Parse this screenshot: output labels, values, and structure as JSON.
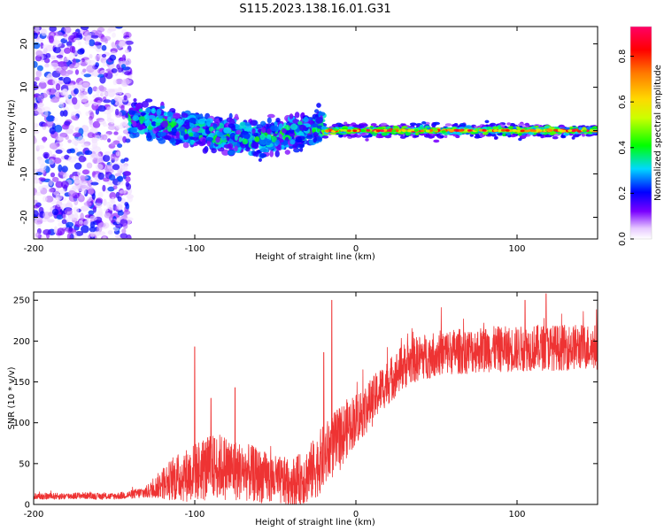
{
  "title": "S115.2023.138.16.01.G31",
  "colors": {
    "snr_line": "#ee3333",
    "spectral_low": "#7a00ff",
    "spectral_mid": "#00ff00",
    "spectral_high": "#ff0066"
  },
  "chart_data": [
    {
      "type": "heatmap",
      "title": "S115.2023.138.16.01.G31",
      "xlabel": "Height of straight line (km)",
      "ylabel": "Frequency (Hz)",
      "xlim": [
        -200,
        150
      ],
      "ylim": [
        -25,
        24
      ],
      "x_ticks": [
        -200,
        -100,
        0,
        100
      ],
      "y_ticks": [
        -20,
        -10,
        0,
        10,
        20
      ],
      "grid": false,
      "colorbar": {
        "label": "Normalized spectral amplitude",
        "range": [
          0,
          0.93
        ],
        "ticks": [
          0.0,
          0.2,
          0.4,
          0.6,
          0.8
        ],
        "colormap": "rainbow"
      },
      "features": [
        {
          "x_range": [
            -200,
            -140
          ],
          "freq_range": [
            -25,
            24
          ],
          "amplitude": [
            0.02,
            0.25
          ],
          "pattern": "diffuse scatter"
        },
        {
          "x_range": [
            -140,
            -20
          ],
          "freq_center": [
            3,
            0,
            -2,
            1
          ],
          "freq_spread": 6,
          "amplitude": [
            0.1,
            0.45
          ],
          "pattern": "wavy band"
        },
        {
          "x_range": [
            -20,
            150
          ],
          "freq_center": 0,
          "freq_spread": 1.2,
          "amplitude": [
            0.4,
            0.93
          ],
          "pattern": "narrow steady line"
        }
      ]
    },
    {
      "type": "line",
      "xlabel": "Height of straight line (km)",
      "ylabel": "SNR (10 * v/v)",
      "xlim": [
        -200,
        150
      ],
      "ylim": [
        0,
        260
      ],
      "x_ticks": [
        -200,
        -100,
        0,
        100
      ],
      "y_ticks": [
        0,
        50,
        100,
        150,
        200,
        250
      ],
      "grid": false,
      "series": [
        {
          "color": "#ee3333",
          "x": [
            -200,
            -190,
            -180,
            -170,
            -160,
            -150,
            -140,
            -130,
            -125,
            -120,
            -115,
            -110,
            -105,
            -100,
            -95,
            -90,
            -85,
            -80,
            -75,
            -70,
            -65,
            -60,
            -55,
            -50,
            -45,
            -40,
            -35,
            -30,
            -25,
            -20,
            -15,
            -10,
            -5,
            0,
            5,
            10,
            15,
            20,
            25,
            30,
            35,
            40,
            45,
            50,
            60,
            70,
            80,
            90,
            100,
            110,
            120,
            130,
            140,
            150
          ],
          "y": [
            10,
            10,
            10,
            11,
            10,
            10,
            12,
            15,
            20,
            26,
            30,
            33,
            36,
            40,
            43,
            45,
            47,
            45,
            42,
            40,
            38,
            35,
            32,
            30,
            28,
            27,
            30,
            36,
            45,
            58,
            70,
            80,
            95,
            105,
            115,
            125,
            140,
            150,
            160,
            170,
            175,
            180,
            182,
            185,
            187,
            188,
            190,
            190,
            190,
            192,
            192,
            192,
            193,
            193
          ],
          "noise": [
            4,
            4,
            4,
            4,
            4,
            4,
            5,
            8,
            12,
            20,
            25,
            30,
            33,
            35,
            40,
            40,
            40,
            40,
            38,
            35,
            35,
            33,
            32,
            30,
            30,
            30,
            32,
            35,
            38,
            40,
            40,
            40,
            35,
            32,
            32,
            30,
            28,
            28,
            28,
            28,
            28,
            28,
            28,
            28,
            28,
            28,
            28,
            28,
            28,
            28,
            28,
            28,
            28,
            28
          ],
          "spikes": [
            [
              -100,
              193
            ],
            [
              -90,
              130
            ],
            [
              -75,
              143
            ],
            [
              -15,
              250
            ],
            [
              -20,
              186
            ],
            [
              105,
              250
            ],
            [
              118,
              258
            ]
          ]
        }
      ]
    }
  ]
}
